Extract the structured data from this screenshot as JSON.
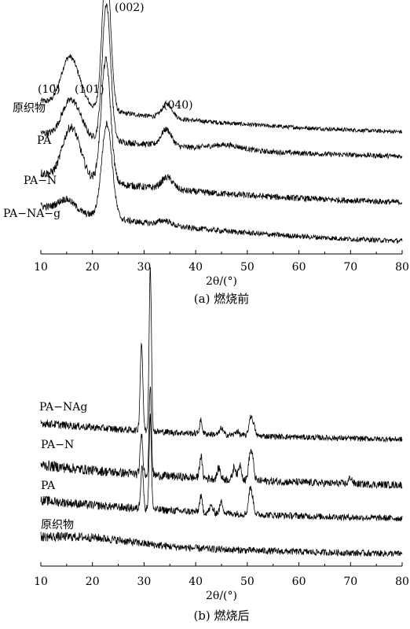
{
  "chart_data": [
    {
      "type": "line",
      "caption": "(a)  燃烧前",
      "xlabel": "2θ/(°)",
      "xlim": [
        10,
        80
      ],
      "xticks": [
        10,
        20,
        30,
        40,
        50,
        60,
        70,
        80
      ],
      "ylabel": "",
      "grid": false,
      "legend": "none",
      "peak_labels": [
        {
          "text": "(10̄)",
          "x": 15.0
        },
        {
          "text": "(101)",
          "x": 16.8
        },
        {
          "text": "(002)",
          "x": 22.7
        },
        {
          "text": "(040)",
          "x": 34.5
        }
      ],
      "series": [
        {
          "name": "原织物",
          "baseline": 0.16,
          "noise": 0.008,
          "peaks": [
            [
              15.0,
              0.14,
              1.4
            ],
            [
              16.8,
              0.11,
              1.5
            ],
            [
              22.7,
              0.64,
              0.8
            ],
            [
              34.5,
              0.06,
              1.0
            ]
          ]
        },
        {
          "name": "PA",
          "baseline": 0.12,
          "noise": 0.01,
          "peaks": [
            [
              15.0,
              0.09,
              1.4
            ],
            [
              16.8,
              0.1,
              1.5
            ],
            [
              22.7,
              0.58,
              0.8
            ],
            [
              34.3,
              0.07,
              1.0
            ],
            [
              46.0,
              0.02,
              3.0
            ]
          ]
        },
        {
          "name": "PA−N",
          "baseline": 0.15,
          "noise": 0.012,
          "peaks": [
            [
              15.2,
              0.13,
              1.4
            ],
            [
              16.8,
              0.12,
              1.5
            ],
            [
              22.6,
              0.52,
              0.9
            ],
            [
              34.5,
              0.05,
              1.1
            ]
          ]
        },
        {
          "name": "PA−NA−g",
          "baseline": 0.18,
          "noise": 0.01,
          "peaks": [
            [
              15.0,
              0.05,
              1.6
            ],
            [
              22.8,
              0.4,
              1.0
            ],
            [
              34.0,
              0.02,
              1.2
            ]
          ]
        }
      ]
    },
    {
      "type": "line",
      "caption": "(b)  燃烧后",
      "xlabel": "2θ/(°)",
      "xlim": [
        10,
        80
      ],
      "xticks": [
        10,
        20,
        30,
        40,
        50,
        60,
        70,
        80
      ],
      "ylabel": "",
      "grid": false,
      "legend": "none",
      "series": [
        {
          "name": "PA−NAg",
          "baseline": 0.09,
          "noise": 0.012,
          "peaks": [
            [
              29.5,
              0.4,
              0.25
            ],
            [
              31.2,
              0.75,
              0.22
            ],
            [
              41.0,
              0.06,
              0.25
            ],
            [
              45.0,
              0.03,
              0.3
            ],
            [
              48.0,
              0.02,
              0.3
            ],
            [
              50.6,
              0.08,
              0.3
            ],
            [
              51.2,
              0.05,
              0.3
            ]
          ]
        },
        {
          "name": "PA−N",
          "baseline": 0.11,
          "noise": 0.016,
          "peaks": [
            [
              29.5,
              0.18,
              0.25
            ],
            [
              31.2,
              0.4,
              0.22
            ],
            [
              41.0,
              0.1,
              0.25
            ],
            [
              44.5,
              0.05,
              0.3
            ],
            [
              47.5,
              0.06,
              0.3
            ],
            [
              48.6,
              0.07,
              0.3
            ],
            [
              50.5,
              0.1,
              0.3
            ],
            [
              51.0,
              0.09,
              0.3
            ],
            [
              70.0,
              0.03,
              0.3
            ]
          ]
        },
        {
          "name": "PA",
          "baseline": 0.1,
          "noise": 0.014,
          "peaks": [
            [
              29.6,
              0.2,
              0.25
            ],
            [
              31.2,
              0.42,
              0.22
            ],
            [
              41.0,
              0.07,
              0.25
            ],
            [
              43.0,
              0.03,
              0.3
            ],
            [
              45.0,
              0.05,
              0.3
            ],
            [
              50.5,
              0.1,
              0.3
            ],
            [
              51.0,
              0.06,
              0.3
            ]
          ]
        },
        {
          "name": "原织物",
          "baseline": 0.08,
          "noise": 0.014,
          "peaks": [
            [
              20.0,
              0.025,
              8.0
            ]
          ]
        }
      ]
    }
  ]
}
